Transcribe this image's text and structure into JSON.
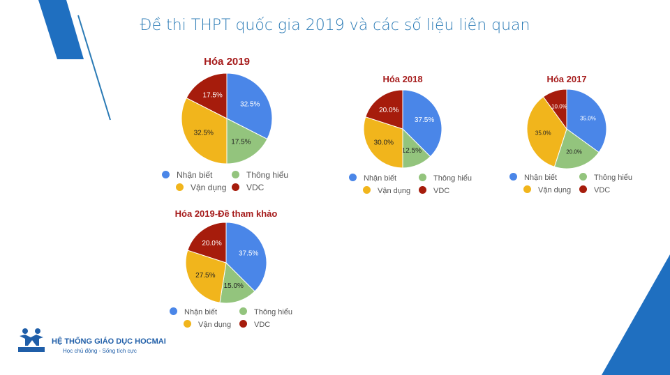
{
  "title": "Đề thi THPT quốc gia 2019 và các số liệu liên quan",
  "brand": {
    "name": "HỆ THỐNG GIÁO DỤC HOCMAI",
    "tagline": "Học chủ động - Sống tích cực",
    "logo_text": "HOCMAI"
  },
  "colors": {
    "Nhận biết": "#4a86e8",
    "Thông hiểu": "#93c47d",
    "Vận dụng": "#f1b51c",
    "VDC": "#a61c0c"
  },
  "chart_data": [
    {
      "type": "pie",
      "title": "Hóa 2019",
      "labels": [
        "Nhận biết",
        "Thông hiểu",
        "Vận dụng",
        "VDC"
      ],
      "values": [
        32.5,
        17.5,
        32.5,
        17.5
      ],
      "legend": "bottom"
    },
    {
      "type": "pie",
      "title": "Hóa 2018",
      "labels": [
        "Nhận biết",
        "Thông hiểu",
        "Vận dụng",
        "VDC"
      ],
      "values": [
        37.5,
        12.5,
        30.0,
        20.0
      ],
      "legend": "bottom"
    },
    {
      "type": "pie",
      "title": "Hóa 2017",
      "labels": [
        "Nhận biết",
        "Thông hiểu",
        "Vận dụng",
        "VDC"
      ],
      "values": [
        35.0,
        20.0,
        35.0,
        10.0
      ],
      "legend": "bottom"
    },
    {
      "type": "pie",
      "title": "Hóa 2019-Đề tham khảo",
      "labels": [
        "Nhận biết",
        "Thông hiểu",
        "Vận dụng",
        "VDC"
      ],
      "values": [
        37.5,
        15.0,
        27.5,
        20.0
      ],
      "legend": "bottom"
    }
  ]
}
